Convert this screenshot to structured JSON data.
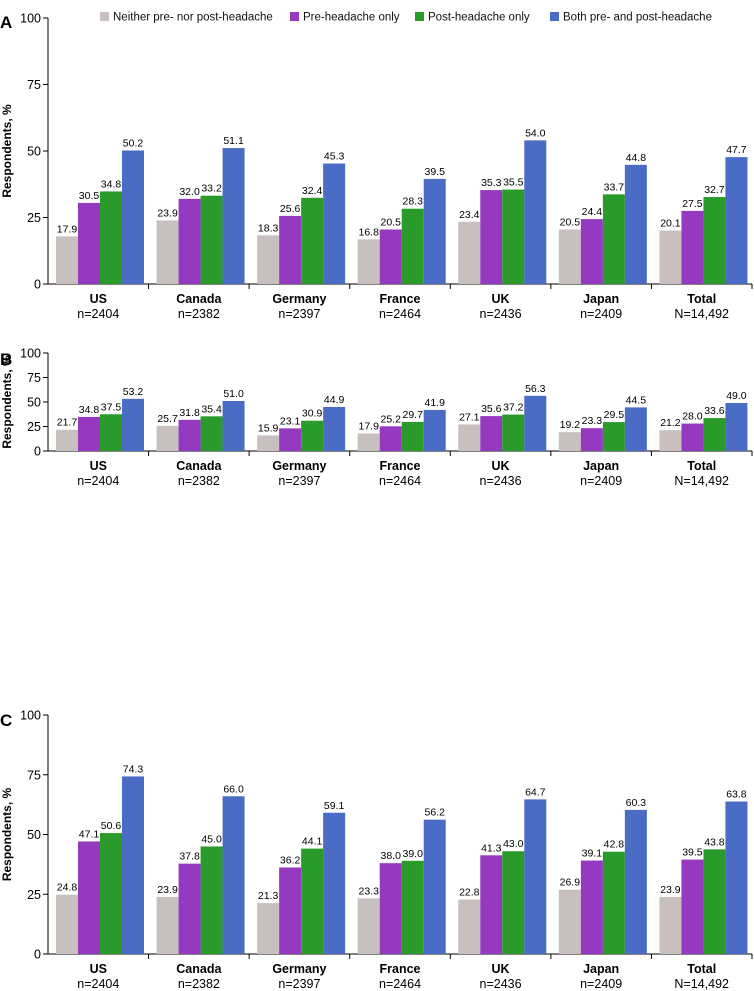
{
  "colors": {
    "neither": "#c8bfbf",
    "pre": "#9439c0",
    "post": "#2a9a2a",
    "both": "#4a6cc4"
  },
  "legend": [
    {
      "key": "neither",
      "label": "Neither pre- nor post-headache"
    },
    {
      "key": "pre",
      "label": "Pre-headache only"
    },
    {
      "key": "post",
      "label": "Post-headache only"
    },
    {
      "key": "both",
      "label": "Both pre- and post-headache"
    }
  ],
  "chart_data": [
    {
      "panel": "A",
      "type": "bar",
      "ylabel": "Respondents, %",
      "ylim": [
        0,
        100
      ],
      "yticks": [
        0,
        25,
        50,
        75,
        100
      ],
      "categories": [
        {
          "name": "US",
          "n": "n=2404"
        },
        {
          "name": "Canada",
          "n": "n=2382"
        },
        {
          "name": "Germany",
          "n": "n=2397"
        },
        {
          "name": "France",
          "n": "n=2464"
        },
        {
          "name": "UK",
          "n": "n=2436"
        },
        {
          "name": "Japan",
          "n": "n=2409"
        },
        {
          "name": "Total",
          "n": "N=14,492"
        }
      ],
      "series": [
        {
          "key": "neither",
          "name": "Neither pre- nor post-headache",
          "values": [
            17.9,
            23.9,
            18.3,
            16.8,
            23.4,
            20.5,
            20.1
          ],
          "labels": [
            "17.9",
            "23.9",
            "18.3",
            "16.8",
            "23.4",
            "20.5",
            "20.1"
          ]
        },
        {
          "key": "pre",
          "name": "Pre-headache only",
          "values": [
            30.5,
            32.0,
            25.6,
            20.5,
            35.3,
            24.4,
            27.5
          ],
          "labels": [
            "30.5",
            "32.0",
            "25.6",
            "20.5",
            "35.3",
            "24.4",
            "27.5"
          ]
        },
        {
          "key": "post",
          "name": "Post-headache only",
          "values": [
            34.8,
            33.2,
            32.4,
            28.3,
            35.5,
            33.7,
            32.7
          ],
          "labels": [
            "34.8",
            "33.2",
            "32.4",
            "28.3",
            "35.5",
            "33.7",
            "32.7"
          ]
        },
        {
          "key": "both",
          "name": "Both pre- and post-headache",
          "values": [
            50.2,
            51.1,
            45.3,
            39.5,
            54.0,
            44.8,
            47.7
          ],
          "labels": [
            "50.2",
            "51.1",
            "45.3",
            "39.5",
            "54.0",
            "44.8",
            "47.7"
          ]
        }
      ]
    },
    {
      "panel": "B",
      "type": "bar",
      "ylabel": "Respondents, %",
      "ylim": [
        0,
        100
      ],
      "yticks": [
        0,
        25,
        50,
        75,
        100
      ],
      "categories": [
        {
          "name": "US",
          "n": "n=2404"
        },
        {
          "name": "Canada",
          "n": "n=2382"
        },
        {
          "name": "Germany",
          "n": "n=2397"
        },
        {
          "name": "France",
          "n": "n=2464"
        },
        {
          "name": "UK",
          "n": "n=2436"
        },
        {
          "name": "Japan",
          "n": "n=2409"
        },
        {
          "name": "Total",
          "n": "N=14,492"
        }
      ],
      "series": [
        {
          "key": "neither",
          "name": "Neither pre- nor post-headache",
          "values": [
            21.7,
            25.7,
            15.9,
            17.9,
            27.1,
            19.2,
            21.2
          ],
          "labels": [
            "21.7",
            "25.7",
            "15.9",
            "17.9",
            "27.1",
            "19.2",
            "21.2"
          ]
        },
        {
          "key": "pre",
          "name": "Pre-headache only",
          "values": [
            34.8,
            31.8,
            23.1,
            25.2,
            35.6,
            23.3,
            28.0
          ],
          "labels": [
            "34.8",
            "31.8",
            "23.1",
            "25.2",
            "35.6",
            "23.3",
            "28.0"
          ]
        },
        {
          "key": "post",
          "name": "Post-headache only",
          "values": [
            37.5,
            35.4,
            30.9,
            29.7,
            37.2,
            29.5,
            33.6
          ],
          "labels": [
            "37.5",
            "35.4",
            "30.9",
            "29.7",
            "37.2",
            "29.5",
            "33.6"
          ]
        },
        {
          "key": "both",
          "name": "Both pre- and post-headache",
          "values": [
            53.2,
            51.0,
            44.9,
            41.9,
            56.3,
            44.5,
            49.0
          ],
          "labels": [
            "53.2",
            "51.0",
            "44.9",
            "41.9",
            "56.3",
            "44.5",
            "49.0"
          ]
        }
      ]
    },
    {
      "panel": "C",
      "type": "bar",
      "ylabel": "Respondents, %",
      "ylim": [
        0,
        100
      ],
      "yticks": [
        0,
        25,
        50,
        75,
        100
      ],
      "categories": [
        {
          "name": "US",
          "n": "n=2404"
        },
        {
          "name": "Canada",
          "n": "n=2382"
        },
        {
          "name": "Germany",
          "n": "n=2397"
        },
        {
          "name": "France",
          "n": "n=2464"
        },
        {
          "name": "UK",
          "n": "n=2436"
        },
        {
          "name": "Japan",
          "n": "n=2409"
        },
        {
          "name": "Total",
          "n": "N=14,492"
        }
      ],
      "series": [
        {
          "key": "neither",
          "name": "Neither pre- nor post-headache",
          "values": [
            24.8,
            23.9,
            21.3,
            23.3,
            22.8,
            26.9,
            23.9
          ],
          "labels": [
            "24.8",
            "23.9",
            "21.3",
            "23.3",
            "22.8",
            "26.9",
            "23.9"
          ]
        },
        {
          "key": "pre",
          "name": "Pre-headache only",
          "values": [
            47.1,
            37.8,
            36.2,
            38.0,
            41.3,
            39.1,
            39.5
          ],
          "labels": [
            "47.1",
            "37.8",
            "36.2",
            "38.0",
            "41.3",
            "39.1",
            "39.5"
          ]
        },
        {
          "key": "post",
          "name": "Post-headache only",
          "values": [
            50.6,
            45.0,
            44.1,
            39.0,
            43.0,
            42.8,
            43.8
          ],
          "labels": [
            "50.6",
            "45.0",
            "44.1",
            "39.0",
            "43.0",
            "42.8",
            "43.8"
          ]
        },
        {
          "key": "both",
          "name": "Both pre- and post-headache",
          "values": [
            74.3,
            66.0,
            59.1,
            56.2,
            64.7,
            60.3,
            63.8
          ],
          "labels": [
            "74.3",
            "66.0",
            "59.1",
            "56.2",
            "64.7",
            "60.3",
            "63.8"
          ]
        }
      ]
    }
  ]
}
